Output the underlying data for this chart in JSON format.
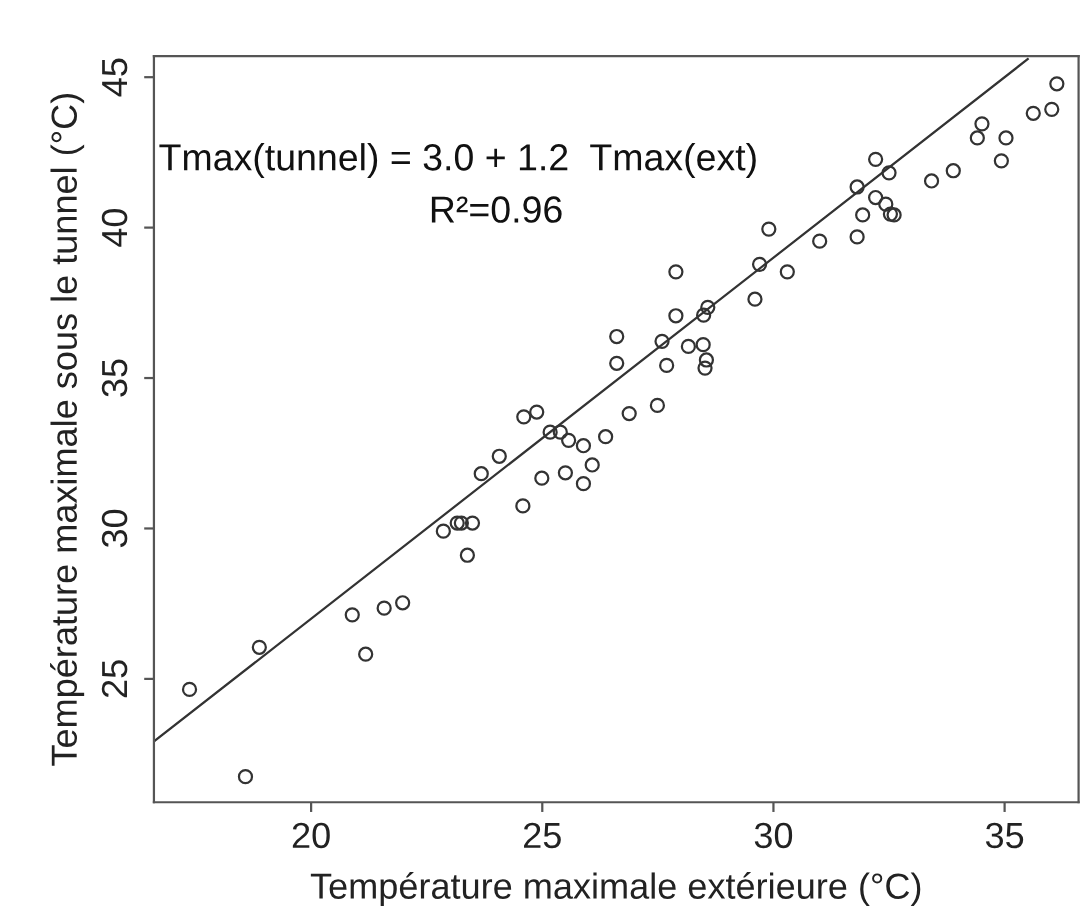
{
  "chart_data": {
    "type": "scatter",
    "xlabel": "Température maximale extérieure (°C)",
    "ylabel": "Température maximale sous le tunnel (°C)",
    "xlim": [
      16.6,
      36.6
    ],
    "ylim": [
      20.9,
      45.7
    ],
    "xticks": [
      20,
      25,
      30,
      35
    ],
    "yticks": [
      25,
      30,
      35,
      40,
      45
    ],
    "grid": false,
    "legend": false,
    "marker": "circle",
    "annotations": [
      "Tmax(tunnel) = 3.0 + 1.2  Tmax(ext)",
      "R²=0.96"
    ],
    "series": [
      {
        "color": "#333333",
        "x": [
          17.37,
          18.58,
          18.88,
          20.89,
          21.18,
          21.58,
          21.98,
          22.86,
          23.16,
          23.25,
          23.49,
          23.38,
          23.68,
          24.07,
          24.58,
          24.6,
          24.88,
          24.99,
          25.17,
          25.39,
          25.5,
          25.57,
          25.89,
          25.89,
          26.08,
          26.37,
          26.88,
          27.49,
          26.61,
          26.61,
          27.59,
          27.69,
          27.89,
          27.89,
          28.16,
          28.48,
          28.49,
          28.58,
          28.55,
          28.52,
          29.6,
          29.7,
          29.9,
          30.3,
          31.0,
          31.81,
          31.81,
          31.93,
          32.21,
          32.21,
          32.5,
          32.43,
          32.53,
          32.61,
          33.42,
          33.89,
          34.41,
          34.51,
          34.93,
          35.03,
          35.62,
          36.02,
          36.13
        ],
        "values": [
          24.65,
          21.75,
          26.05,
          27.13,
          25.82,
          27.35,
          27.53,
          29.91,
          30.18,
          30.18,
          30.18,
          29.11,
          31.82,
          32.4,
          30.75,
          33.71,
          33.87,
          31.67,
          33.2,
          33.2,
          31.85,
          32.93,
          32.75,
          31.49,
          32.11,
          33.05,
          33.82,
          34.09,
          35.49,
          36.38,
          36.22,
          35.42,
          37.07,
          38.53,
          36.05,
          36.11,
          37.09,
          37.35,
          35.6,
          35.33,
          37.62,
          38.78,
          39.95,
          38.53,
          39.55,
          39.69,
          41.35,
          40.42,
          42.27,
          41.0,
          41.82,
          40.78,
          40.45,
          40.42,
          41.55,
          41.89,
          42.98,
          43.45,
          42.22,
          42.98,
          43.8,
          43.93,
          44.78
        ]
      },
      {
        "type": "line",
        "color": "#333333",
        "x": [
          16.6,
          35.5
        ],
        "values": [
          22.92,
          45.6
        ],
        "line_style": "solid",
        "marker": "none"
      }
    ]
  }
}
